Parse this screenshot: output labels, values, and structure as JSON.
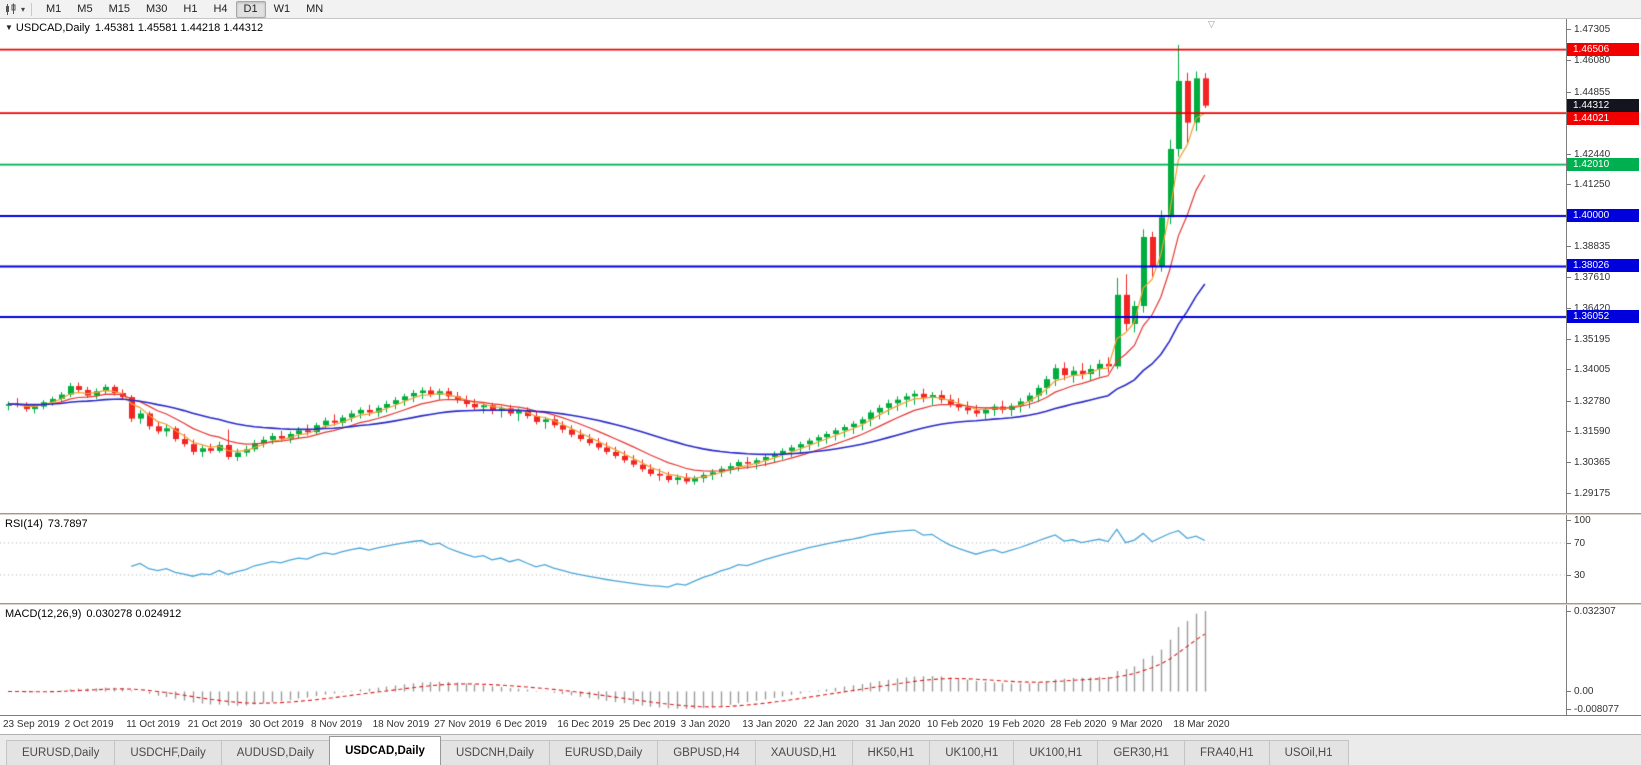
{
  "toolbar": {
    "chart_icon": "candlestick-chart-icon",
    "periods": [
      "M1",
      "M5",
      "M15",
      "M30",
      "H1",
      "H4",
      "D1",
      "W1",
      "MN"
    ],
    "active_period": "D1"
  },
  "chart": {
    "symbol_label": "USDCAD,Daily",
    "ohlc_text": "1.45381 1.45581 1.44218 1.44312",
    "ohlc": {
      "open": "1.45381",
      "high": "1.45581",
      "low": "1.44218",
      "close": "1.44312"
    },
    "price_axis": [
      "1.47305",
      "1.46080",
      "1.44855",
      "1.43665",
      "1.42440",
      "1.41250",
      "1.40025",
      "1.38835",
      "1.37610",
      "1.36420",
      "1.35195",
      "1.34005",
      "1.32780",
      "1.31590",
      "1.30365",
      "1.29175"
    ],
    "price_max": 1.477,
    "price_min": 1.2839,
    "current_price": {
      "value": 1.44312,
      "label": "1.44312",
      "bg": "#14141e"
    },
    "hlines": [
      {
        "value": 1.46506,
        "label": "1.46506",
        "color": "#f20000"
      },
      {
        "value": 1.44021,
        "label": "1.44021",
        "color": "#f20000"
      },
      {
        "value": 1.4201,
        "label": "1.42010",
        "color": "#00b050"
      },
      {
        "value": 1.4,
        "label": "1.40000",
        "color": "#0000dd"
      },
      {
        "value": 1.38026,
        "label": "1.38026",
        "color": "#0000dd"
      },
      {
        "value": 1.36052,
        "label": "1.36052",
        "color": "#0000dd"
      }
    ],
    "colors": {
      "up": "#00ad3f",
      "down": "#f32424"
    }
  },
  "chart_data": {
    "type": "candlestick",
    "symbol": "USDCAD",
    "timeframe": "Daily",
    "x_labels": [
      "23 Sep 2019",
      "2 Oct 2019",
      "11 Oct 2019",
      "21 Oct 2019",
      "30 Oct 2019",
      "8 Nov 2019",
      "18 Nov 2019",
      "27 Nov 2019",
      "6 Dec 2019",
      "16 Dec 2019",
      "25 Dec 2019",
      "3 Jan 2020",
      "13 Jan 2020",
      "22 Jan 2020",
      "31 Jan 2020",
      "10 Feb 2020",
      "19 Feb 2020",
      "28 Feb 2020",
      "9 Mar 2020",
      "18 Mar 2020"
    ],
    "label_every_n_candles": 7,
    "ylim": [
      1.2839,
      1.477
    ],
    "moving_averages": [
      {
        "period": 4,
        "method": "ema",
        "color": "#f0a030"
      },
      {
        "period": 10,
        "method": "ema",
        "color": "#e53935"
      },
      {
        "period": 30,
        "method": "ema",
        "color": "#2929c8"
      }
    ],
    "candles": [
      [
        1.3258,
        1.3275,
        1.324,
        1.3265
      ],
      [
        1.3265,
        1.3288,
        1.3252,
        1.326
      ],
      [
        1.326,
        1.3272,
        1.3235,
        1.3245
      ],
      [
        1.3245,
        1.3262,
        1.3228,
        1.3255
      ],
      [
        1.3255,
        1.328,
        1.3244,
        1.3272
      ],
      [
        1.3272,
        1.3294,
        1.3258,
        1.3285
      ],
      [
        1.3285,
        1.3312,
        1.3272,
        1.3302
      ],
      [
        1.3302,
        1.3348,
        1.3292,
        1.3335
      ],
      [
        1.3335,
        1.3349,
        1.3308,
        1.332
      ],
      [
        1.332,
        1.3332,
        1.3288,
        1.3298
      ],
      [
        1.3298,
        1.3326,
        1.3285,
        1.3315
      ],
      [
        1.3315,
        1.3342,
        1.3302,
        1.3332
      ],
      [
        1.3332,
        1.334,
        1.3298,
        1.3308
      ],
      [
        1.3308,
        1.3322,
        1.328,
        1.3292
      ],
      [
        1.3292,
        1.33,
        1.3195,
        1.3208
      ],
      [
        1.3208,
        1.3242,
        1.3188,
        1.3228
      ],
      [
        1.3228,
        1.3236,
        1.3165,
        1.3178
      ],
      [
        1.3178,
        1.3198,
        1.3148,
        1.3158
      ],
      [
        1.3158,
        1.3186,
        1.3138,
        1.317
      ],
      [
        1.317,
        1.3178,
        1.3118,
        1.3128
      ],
      [
        1.3128,
        1.3148,
        1.3098,
        1.3108
      ],
      [
        1.3108,
        1.3126,
        1.3066,
        1.3078
      ],
      [
        1.3078,
        1.3104,
        1.3058,
        1.3092
      ],
      [
        1.3092,
        1.311,
        1.3072,
        1.3082
      ],
      [
        1.3082,
        1.3118,
        1.3075,
        1.3105
      ],
      [
        1.3105,
        1.3165,
        1.3048,
        1.3058
      ],
      [
        1.3058,
        1.309,
        1.3042,
        1.3075
      ],
      [
        1.3075,
        1.3102,
        1.306,
        1.3088
      ],
      [
        1.3088,
        1.3125,
        1.3078,
        1.3112
      ],
      [
        1.3112,
        1.3138,
        1.3095,
        1.3125
      ],
      [
        1.3125,
        1.3152,
        1.3108,
        1.314
      ],
      [
        1.314,
        1.316,
        1.3118,
        1.313
      ],
      [
        1.313,
        1.3158,
        1.3112,
        1.3148
      ],
      [
        1.3148,
        1.3175,
        1.313,
        1.3162
      ],
      [
        1.3162,
        1.3185,
        1.3142,
        1.3155
      ],
      [
        1.3155,
        1.3192,
        1.3145,
        1.3182
      ],
      [
        1.3182,
        1.3212,
        1.3168,
        1.32
      ],
      [
        1.32,
        1.3225,
        1.318,
        1.3192
      ],
      [
        1.3192,
        1.3222,
        1.3178,
        1.3212
      ],
      [
        1.3212,
        1.324,
        1.3195,
        1.3228
      ],
      [
        1.3228,
        1.3252,
        1.3208,
        1.3242
      ],
      [
        1.3242,
        1.3262,
        1.3218,
        1.3232
      ],
      [
        1.3232,
        1.326,
        1.3215,
        1.325
      ],
      [
        1.325,
        1.3278,
        1.3232,
        1.3265
      ],
      [
        1.3265,
        1.3292,
        1.3245,
        1.328
      ],
      [
        1.328,
        1.3305,
        1.3258,
        1.3295
      ],
      [
        1.3295,
        1.332,
        1.3272,
        1.3308
      ],
      [
        1.3308,
        1.333,
        1.3285,
        1.3318
      ],
      [
        1.3318,
        1.3333,
        1.3292,
        1.3302
      ],
      [
        1.3302,
        1.3325,
        1.3282,
        1.3315
      ],
      [
        1.3315,
        1.3328,
        1.3285,
        1.3295
      ],
      [
        1.3295,
        1.3312,
        1.3268,
        1.328
      ],
      [
        1.328,
        1.3298,
        1.3252,
        1.3265
      ],
      [
        1.3265,
        1.3285,
        1.324,
        1.3252
      ],
      [
        1.3252,
        1.3272,
        1.3228,
        1.326
      ],
      [
        1.326,
        1.327,
        1.3225,
        1.3238
      ],
      [
        1.3238,
        1.3258,
        1.3212,
        1.3248
      ],
      [
        1.3248,
        1.3262,
        1.3218,
        1.3228
      ],
      [
        1.3228,
        1.3248,
        1.3198,
        1.324
      ],
      [
        1.324,
        1.3252,
        1.3208,
        1.3218
      ],
      [
        1.3218,
        1.3235,
        1.3185,
        1.3195
      ],
      [
        1.3195,
        1.3215,
        1.3168,
        1.3205
      ],
      [
        1.3205,
        1.3218,
        1.3172,
        1.3182
      ],
      [
        1.3182,
        1.3198,
        1.3152,
        1.3165
      ],
      [
        1.3165,
        1.3182,
        1.3135,
        1.3145
      ],
      [
        1.3145,
        1.3165,
        1.3118,
        1.3128
      ],
      [
        1.3128,
        1.3148,
        1.3102,
        1.3112
      ],
      [
        1.3112,
        1.3132,
        1.3085,
        1.3095
      ],
      [
        1.3095,
        1.3115,
        1.3068,
        1.3078
      ],
      [
        1.3078,
        1.3098,
        1.3052,
        1.3062
      ],
      [
        1.3062,
        1.3082,
        1.3035,
        1.3045
      ],
      [
        1.3045,
        1.3065,
        1.3018,
        1.3028
      ],
      [
        1.3028,
        1.3048,
        1.3,
        1.301
      ],
      [
        1.301,
        1.303,
        1.2982,
        1.2992
      ],
      [
        1.2992,
        1.3012,
        1.2965,
        1.2985
      ],
      [
        1.2985,
        1.3,
        1.2958,
        1.2968
      ],
      [
        1.2968,
        1.299,
        1.295,
        1.2978
      ],
      [
        1.2978,
        1.2995,
        1.2952,
        1.2962
      ],
      [
        1.2962,
        1.2985,
        1.295,
        1.2975
      ],
      [
        1.2975,
        1.2998,
        1.2958,
        1.2988
      ],
      [
        1.2988,
        1.301,
        1.2968,
        1.2998
      ],
      [
        1.2998,
        1.3022,
        1.298,
        1.3012
      ],
      [
        1.3012,
        1.3035,
        1.2992,
        1.3022
      ],
      [
        1.3022,
        1.3048,
        1.3002,
        1.3038
      ],
      [
        1.3038,
        1.3058,
        1.3012,
        1.3032
      ],
      [
        1.3032,
        1.3055,
        1.301,
        1.3045
      ],
      [
        1.3045,
        1.3068,
        1.3022,
        1.3058
      ],
      [
        1.3058,
        1.308,
        1.3035,
        1.307
      ],
      [
        1.307,
        1.3092,
        1.3048,
        1.3082
      ],
      [
        1.3082,
        1.3105,
        1.3058,
        1.3095
      ],
      [
        1.3095,
        1.3118,
        1.3072,
        1.3108
      ],
      [
        1.3108,
        1.3132,
        1.3085,
        1.3122
      ],
      [
        1.3122,
        1.3145,
        1.3098,
        1.3135
      ],
      [
        1.3135,
        1.3158,
        1.311,
        1.3148
      ],
      [
        1.3148,
        1.3172,
        1.3122,
        1.3162
      ],
      [
        1.3162,
        1.3185,
        1.3135,
        1.3175
      ],
      [
        1.3175,
        1.3198,
        1.3148,
        1.3188
      ],
      [
        1.3188,
        1.3215,
        1.3162,
        1.3205
      ],
      [
        1.3205,
        1.3242,
        1.3178,
        1.3232
      ],
      [
        1.3232,
        1.3262,
        1.3205,
        1.325
      ],
      [
        1.325,
        1.3282,
        1.3222,
        1.3268
      ],
      [
        1.3268,
        1.3295,
        1.3238,
        1.3282
      ],
      [
        1.3282,
        1.3308,
        1.3252,
        1.3295
      ],
      [
        1.3295,
        1.3318,
        1.3262,
        1.3305
      ],
      [
        1.3305,
        1.3325,
        1.3272,
        1.329
      ],
      [
        1.329,
        1.3312,
        1.3262,
        1.33
      ],
      [
        1.33,
        1.3318,
        1.3268,
        1.3282
      ],
      [
        1.3282,
        1.3302,
        1.3252,
        1.3265
      ],
      [
        1.3265,
        1.3288,
        1.3238,
        1.3252
      ],
      [
        1.3252,
        1.3275,
        1.3225,
        1.324
      ],
      [
        1.324,
        1.3262,
        1.3215,
        1.3228
      ],
      [
        1.3228,
        1.3252,
        1.3205,
        1.3242
      ],
      [
        1.3242,
        1.3265,
        1.3218,
        1.3255
      ],
      [
        1.3255,
        1.3278,
        1.3228,
        1.3242
      ],
      [
        1.3242,
        1.3268,
        1.3218,
        1.3258
      ],
      [
        1.3258,
        1.3288,
        1.3232,
        1.3275
      ],
      [
        1.3275,
        1.331,
        1.3248,
        1.3298
      ],
      [
        1.3298,
        1.334,
        1.3272,
        1.3328
      ],
      [
        1.3328,
        1.3375,
        1.3302,
        1.3362
      ],
      [
        1.3362,
        1.342,
        1.3335,
        1.3405
      ],
      [
        1.3405,
        1.3428,
        1.3358,
        1.3378
      ],
      [
        1.3378,
        1.3412,
        1.3348,
        1.3395
      ],
      [
        1.3395,
        1.3425,
        1.3362,
        1.3382
      ],
      [
        1.3382,
        1.3418,
        1.3355,
        1.3402
      ],
      [
        1.3402,
        1.3438,
        1.3372,
        1.3422
      ],
      [
        1.3422,
        1.3448,
        1.3388,
        1.3412
      ],
      [
        1.3412,
        1.3758,
        1.3402,
        1.3692
      ],
      [
        1.3692,
        1.3772,
        1.3552,
        1.3578
      ],
      [
        1.3578,
        1.3668,
        1.3545,
        1.3648
      ],
      [
        1.3648,
        1.3948,
        1.3622,
        1.3918
      ],
      [
        1.3918,
        1.3938,
        1.3762,
        1.3802
      ],
      [
        1.3802,
        1.4022,
        1.3782,
        1.3995
      ],
      [
        1.3995,
        1.4298,
        1.3968,
        1.4262
      ],
      [
        1.4262,
        1.4669,
        1.4232,
        1.4528
      ],
      [
        1.4528,
        1.456,
        1.4285,
        1.4365
      ],
      [
        1.4365,
        1.4565,
        1.4332,
        1.4538
      ],
      [
        1.45381,
        1.45581,
        1.44218,
        1.44312
      ]
    ]
  },
  "rsi": {
    "name": "RSI(14)",
    "value": "73.7897",
    "period": 14,
    "axis": [
      "100",
      "70",
      "30"
    ],
    "axis_values": [
      100,
      70,
      30
    ],
    "levels": [
      70,
      30
    ],
    "color": "#4da6d9"
  },
  "macd": {
    "name": "MACD(12,26,9)",
    "values_text": "0.030278 0.024912",
    "main_value": "0.030278",
    "signal_value": "0.024912",
    "fast": 12,
    "slow": 26,
    "signal_period": 9,
    "axis_top": "0.032307",
    "axis_zero": "0.00",
    "axis_bottom": "-0.008077",
    "histogram_color": "#9b9b9b",
    "signal_color": "#dd2020"
  },
  "time_axis": [
    "23 Sep 2019",
    "2 Oct 2019",
    "11 Oct 2019",
    "21 Oct 2019",
    "30 Oct 2019",
    "8 Nov 2019",
    "18 Nov 2019",
    "27 Nov 2019",
    "6 Dec 2019",
    "16 Dec 2019",
    "25 Dec 2019",
    "3 Jan 2020",
    "13 Jan 2020",
    "22 Jan 2020",
    "31 Jan 2020",
    "10 Feb 2020",
    "19 Feb 2020",
    "28 Feb 2020",
    "9 Mar 2020",
    "18 Mar 2020"
  ],
  "tabs": {
    "active_index": 3,
    "items": [
      {
        "label": "EURUSD,Daily"
      },
      {
        "label": "USDCHF,Daily"
      },
      {
        "label": "AUDUSD,Daily"
      },
      {
        "label": "USDCAD,Daily"
      },
      {
        "label": "USDCNH,Daily"
      },
      {
        "label": "EURUSD,Daily"
      },
      {
        "label": "GBPUSD,H4"
      },
      {
        "label": "XAUUSD,H1"
      },
      {
        "label": "HK50,H1"
      },
      {
        "label": "UK100,H1"
      },
      {
        "label": "UK100,H1"
      },
      {
        "label": "GER30,H1"
      },
      {
        "label": "FRA40,H1"
      },
      {
        "label": "USOil,H1"
      }
    ]
  }
}
